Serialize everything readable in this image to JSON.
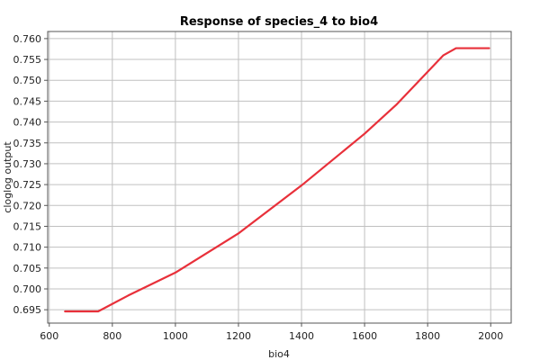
{
  "chart_data": {
    "type": "line",
    "title": "Response of species_4 to bio4",
    "xlabel": "bio4",
    "ylabel": "cloglog output",
    "xlim": [
      595,
      2065
    ],
    "ylim": [
      0.6918,
      0.7617
    ],
    "x_ticks": [
      600,
      800,
      1000,
      1200,
      1400,
      1600,
      1800,
      2000
    ],
    "x_tick_labels": [
      "600",
      "800",
      "1000",
      "1200",
      "1400",
      "1600",
      "1800",
      "2000"
    ],
    "y_ticks": [
      0.695,
      0.7,
      0.705,
      0.71,
      0.715,
      0.72,
      0.725,
      0.73,
      0.735,
      0.74,
      0.745,
      0.75,
      0.755,
      0.76
    ],
    "y_tick_labels": [
      "0.695",
      "0.700",
      "0.705",
      "0.710",
      "0.715",
      "0.720",
      "0.725",
      "0.730",
      "0.735",
      "0.740",
      "0.745",
      "0.750",
      "0.755",
      "0.760"
    ],
    "grid": true,
    "line_color": "#e8303a",
    "series": [
      {
        "x": [
          650,
          755,
          850,
          1000,
          1200,
          1400,
          1600,
          1700,
          1850,
          1890,
          1995
        ],
        "y": [
          0.6946,
          0.6946,
          0.6984,
          0.7039,
          0.7133,
          0.7248,
          0.7372,
          0.7441,
          0.756,
          0.7577,
          0.7577
        ]
      }
    ]
  }
}
